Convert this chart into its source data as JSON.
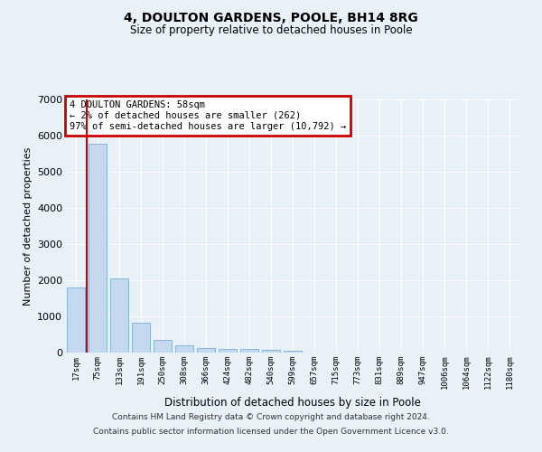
{
  "title": "4, DOULTON GARDENS, POOLE, BH14 8RG",
  "subtitle": "Size of property relative to detached houses in Poole",
  "xlabel": "Distribution of detached houses by size in Poole",
  "ylabel": "Number of detached properties",
  "bar_color": "#c5d8ee",
  "bar_edge_color": "#7aadd4",
  "categories": [
    "17sqm",
    "75sqm",
    "133sqm",
    "191sqm",
    "250sqm",
    "308sqm",
    "366sqm",
    "424sqm",
    "482sqm",
    "540sqm",
    "599sqm",
    "657sqm",
    "715sqm",
    "773sqm",
    "831sqm",
    "889sqm",
    "947sqm",
    "1006sqm",
    "1064sqm",
    "1122sqm",
    "1180sqm"
  ],
  "values": [
    1800,
    5780,
    2060,
    830,
    340,
    190,
    120,
    110,
    100,
    80,
    55,
    0,
    0,
    0,
    0,
    0,
    0,
    0,
    0,
    0,
    0
  ],
  "ylim": [
    0,
    7000
  ],
  "yticks": [
    0,
    1000,
    2000,
    3000,
    4000,
    5000,
    6000,
    7000
  ],
  "vline_x": 0.5,
  "annotation_text": "4 DOULTON GARDENS: 58sqm\n← 2% of detached houses are smaller (262)\n97% of semi-detached houses are larger (10,792) →",
  "annotation_box_color": "#ffffff",
  "annotation_border_color": "#cc0000",
  "footer_line1": "Contains HM Land Registry data © Crown copyright and database right 2024.",
  "footer_line2": "Contains public sector information licensed under the Open Government Licence v3.0.",
  "background_color": "#e8f0f8",
  "grid_color": "#ffffff",
  "fig_width": 6.0,
  "fig_height": 5.0,
  "dpi": 100
}
